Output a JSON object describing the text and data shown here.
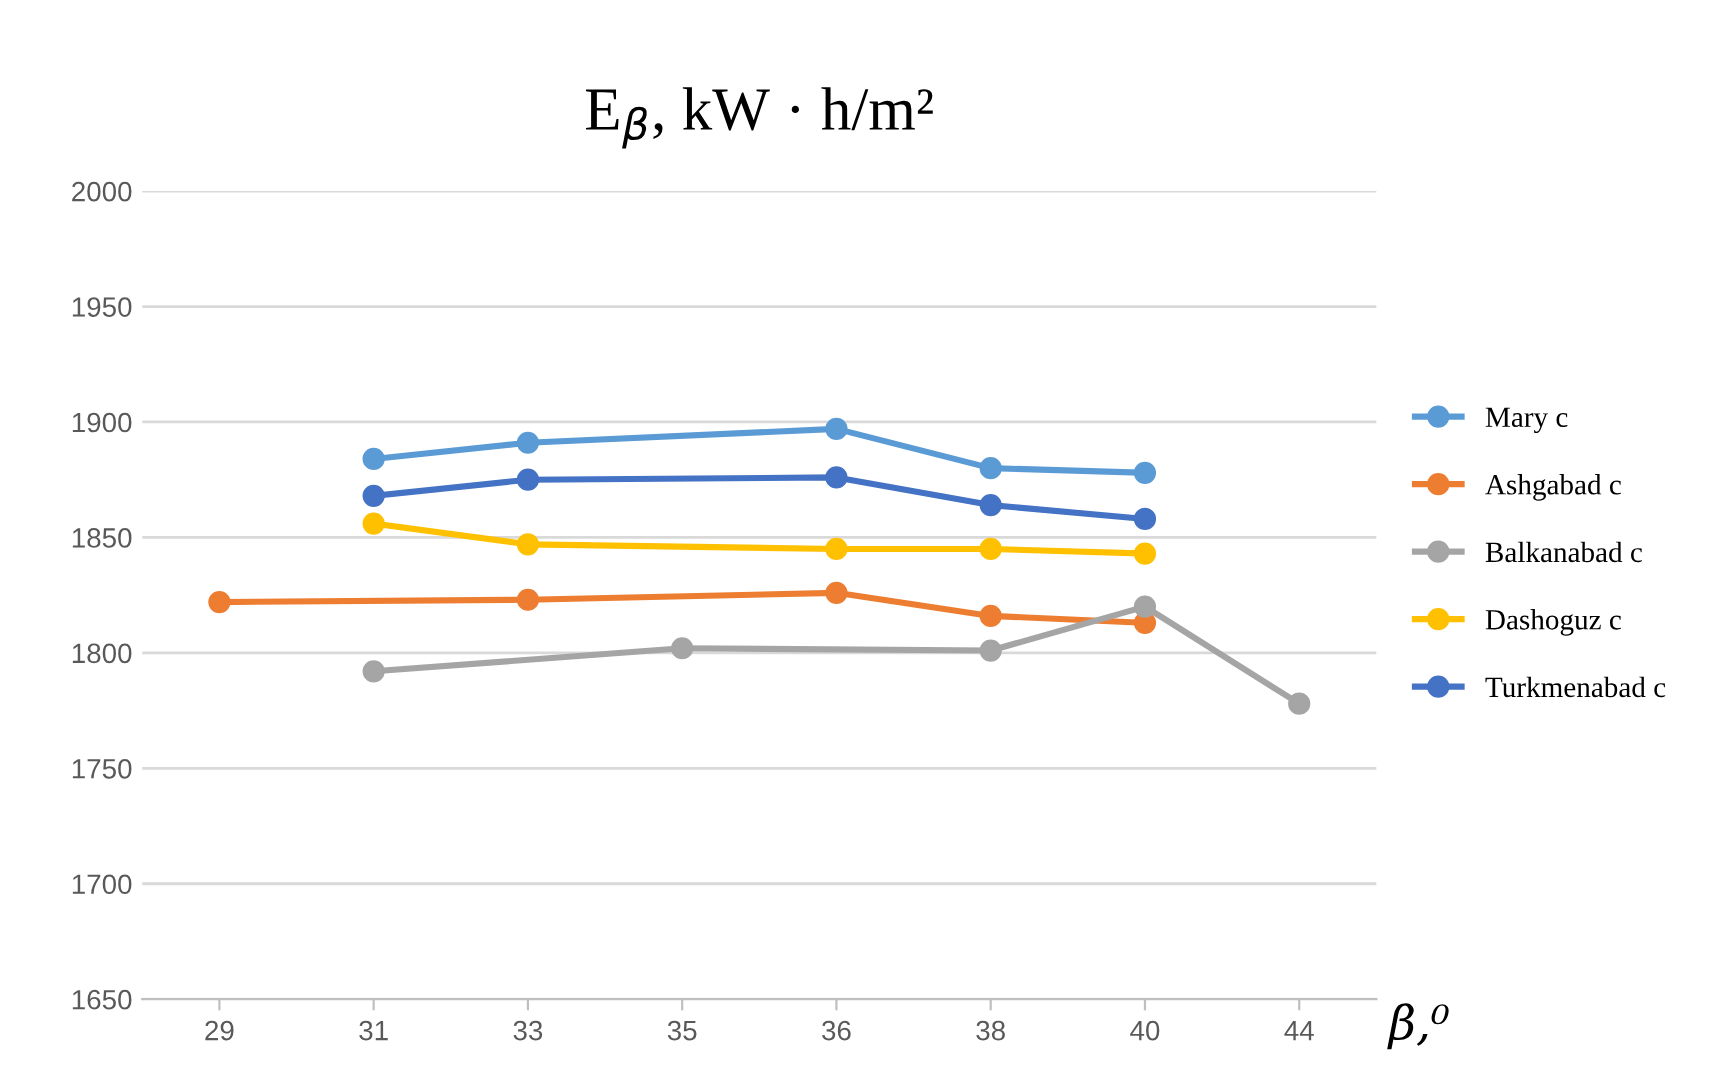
{
  "chart_data": {
    "type": "line",
    "title": "E$_{β}$, kW · h/m²",
    "xlabel": "β,⁰",
    "categories": [
      "29",
      "31",
      "33",
      "35",
      "36",
      "38",
      "40",
      "44"
    ],
    "series": [
      {
        "name": "Mary c",
        "color": "#5b9bd5",
        "values": [
          null,
          1884,
          1891,
          null,
          1897,
          1880,
          1878,
          null
        ]
      },
      {
        "name": "Ashgabad c",
        "color": "#ed7d31",
        "values": [
          1822,
          null,
          1823,
          null,
          1826,
          1816,
          1813,
          null
        ]
      },
      {
        "name": "Balkanabad c",
        "color": "#a5a5a5",
        "values": [
          null,
          1792,
          null,
          1802,
          null,
          1801,
          1820,
          1778
        ]
      },
      {
        "name": "Dashoguz c",
        "color": "#ffc000",
        "values": [
          null,
          1856,
          1847,
          null,
          1845,
          1845,
          1843,
          null
        ]
      },
      {
        "name": "Turkmenabad c",
        "color": "#4472c4",
        "values": [
          null,
          1868,
          1875,
          null,
          1876,
          1864,
          1858,
          null
        ]
      }
    ],
    "ylim": [
      1650,
      2000
    ],
    "yticks": [
      1650,
      1700,
      1750,
      1800,
      1850,
      1900,
      1950,
      2000
    ],
    "grid": "y",
    "legend": "right",
    "marker": "circle",
    "line_style": "solid"
  }
}
